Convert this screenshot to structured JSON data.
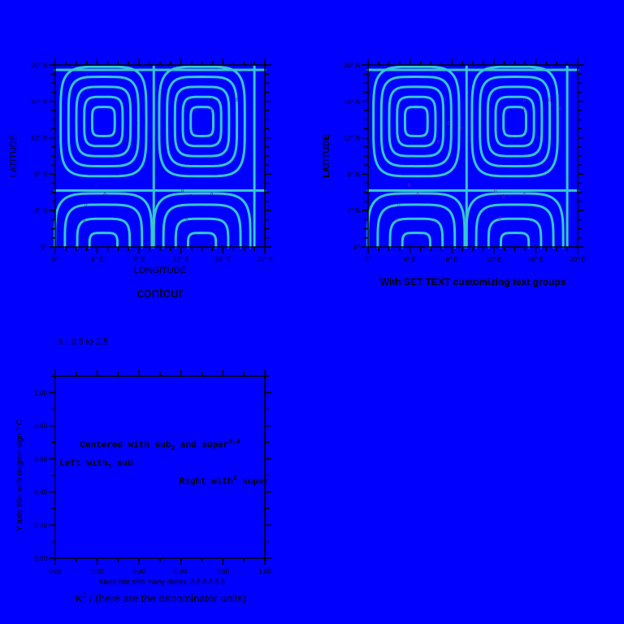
{
  "chart_data": [
    {
      "type": "contour",
      "xlabel": "LONGITUDE",
      "ylabel": "LATITUDE",
      "title": "contour",
      "x_ticks": [
        "0°",
        "4° E",
        "8° E",
        "12° E",
        "16° E",
        "20° E"
      ],
      "y_ticks": [
        "0°",
        "4° N",
        "8° N",
        "12° N",
        "16° N",
        "20° N"
      ],
      "xlim": [
        0,
        20
      ],
      "ylim": [
        0,
        20
      ],
      "label_color": "#1a1aa0"
    },
    {
      "type": "contour",
      "xlabel": "",
      "ylabel": "LATITUDE",
      "ylabel_color": "#ff00ff",
      "title": "With SET TEXT customizing text groups",
      "x_ticks": [
        "0°",
        "4° E",
        "8° E",
        "12° E",
        "16° E",
        "20° E"
      ],
      "y_ticks": [
        "0°",
        "4° N",
        "8° N",
        "12° N",
        "16° N",
        "20° N"
      ],
      "xlim": [
        0,
        20
      ],
      "ylim": [
        0,
        20
      ],
      "label_color": "#8a1a9a"
    },
    {
      "type": "text",
      "header": "X : 0.5 to 2.5",
      "xlim": [
        0,
        1
      ],
      "ylim": [
        0,
        1.1
      ],
      "x_ticks": [
        "0.00",
        "0.20",
        "0.40",
        "0.60",
        "0.80",
        "1.00"
      ],
      "y_ticks": [
        "0.00",
        "0.20",
        "0.40",
        "0.60",
        "0.80",
        "1.00"
      ],
      "ylabel": "Y axis title with degree sign ° C",
      "xlabel": "Xaxis title with many deltas; δ δ δ δ δ δ",
      "title_main": "K",
      "title_sup": "2",
      "title_rest": " / (here are the denominator units)",
      "annotations": [
        {
          "x": 0.5,
          "y": 0.67,
          "anchor": "middle",
          "parts": [
            [
              "Centered with sub",
              ""
            ],
            [
              "2",
              "sub"
            ],
            [
              " and super",
              ""
            ],
            [
              "0.3",
              "sup"
            ]
          ]
        },
        {
          "x": 0.02,
          "y": 0.56,
          "anchor": "start",
          "parts": [
            [
              "Left with",
              ""
            ],
            [
              "1",
              "sub"
            ],
            [
              " sub",
              ""
            ]
          ]
        },
        {
          "x": 1.02,
          "y": 0.45,
          "anchor": "end",
          "parts": [
            [
              "Right with",
              ""
            ],
            [
              "2",
              "sup"
            ],
            [
              " super",
              ""
            ]
          ]
        }
      ]
    }
  ]
}
